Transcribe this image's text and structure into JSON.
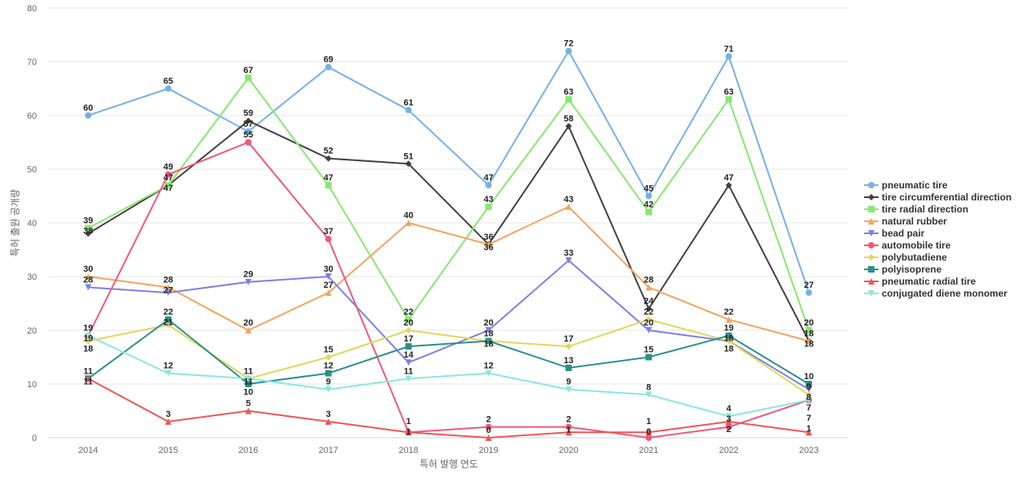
{
  "chart_data": {
    "type": "line",
    "xlabel": "특허 발행 연도",
    "ylabel": "특허 출원 공개량",
    "ylim": [
      0,
      80
    ],
    "yticks": [
      0,
      10,
      20,
      30,
      40,
      50,
      60,
      70,
      80
    ],
    "grid": true,
    "legend_position": "right",
    "x": [
      "2014",
      "2015",
      "2016",
      "2017",
      "2018",
      "2019",
      "2020",
      "2021",
      "2022",
      "2023"
    ],
    "series": [
      {
        "name": "pneumatic tire",
        "color": "#74b0e8",
        "marker": "circle",
        "values": [
          60,
          65,
          57,
          69,
          61,
          47,
          72,
          45,
          71,
          27
        ]
      },
      {
        "name": "tire circumferential direction",
        "color": "#404040",
        "marker": "diamond",
        "values": [
          38,
          47,
          59,
          52,
          51,
          36,
          58,
          24,
          47,
          18
        ]
      },
      {
        "name": "tire radial direction",
        "color": "#86e86e",
        "marker": "square",
        "values": [
          39,
          47,
          67,
          47,
          22,
          43,
          63,
          42,
          63,
          20
        ]
      },
      {
        "name": "natural rubber",
        "color": "#f5a35b",
        "marker": "triangle",
        "values": [
          30,
          28,
          20,
          27,
          40,
          36,
          43,
          28,
          22,
          18
        ]
      },
      {
        "name": "bead pair",
        "color": "#7b7fe8",
        "marker": "triangle-down",
        "values": [
          28,
          27,
          29,
          30,
          14,
          20,
          33,
          20,
          18,
          9
        ]
      },
      {
        "name": "automobile tire",
        "color": "#f0587a",
        "marker": "circle",
        "values": [
          19,
          49,
          55,
          37,
          1,
          2,
          2,
          0,
          2,
          7
        ]
      },
      {
        "name": "polybutadiene",
        "color": "#e5d45a",
        "marker": "diamond",
        "values": [
          18,
          21,
          11,
          15,
          20,
          18,
          17,
          22,
          18,
          8
        ]
      },
      {
        "name": "polyisoprene",
        "color": "#2a8f8a",
        "marker": "square",
        "values": [
          11,
          22,
          10,
          12,
          17,
          18,
          13,
          15,
          19,
          10
        ]
      },
      {
        "name": "pneumatic radial tire",
        "color": "#f05454",
        "marker": "triangle",
        "values": [
          11,
          3,
          5,
          3,
          1,
          0,
          1,
          1,
          3,
          1
        ]
      },
      {
        "name": "conjugated diene monomer",
        "color": "#88e8dc",
        "marker": "triangle-down",
        "values": [
          19,
          12,
          11,
          9,
          11,
          12,
          9,
          8,
          4,
          7
        ]
      }
    ]
  }
}
